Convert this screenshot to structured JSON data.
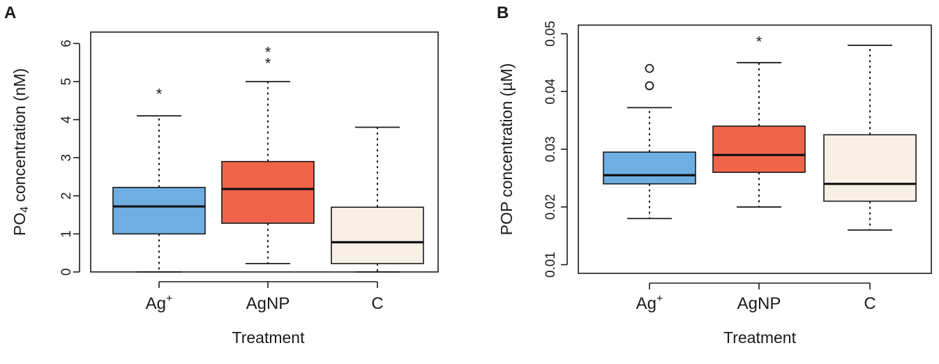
{
  "chart_data": [
    {
      "type": "boxplot",
      "panel_label": "A",
      "xlabel": "Treatment",
      "ylabel": {
        "pre": "PO",
        "sub": "4",
        "post": " concentration (nM)"
      },
      "ylim": [
        0,
        6.3
      ],
      "yticks": [
        "0",
        "1",
        "2",
        "3",
        "4",
        "5",
        "6"
      ],
      "ytick_values": [
        0,
        1,
        2,
        3,
        4,
        5,
        6
      ],
      "categories": [
        {
          "base": "Ag",
          "sup": "+"
        },
        {
          "base": "AgNP",
          "sup": ""
        },
        {
          "base": "C",
          "sup": ""
        }
      ],
      "boxes": [
        {
          "min": 0.0,
          "q1": 1.0,
          "median": 1.72,
          "q3": 2.22,
          "max": 4.1,
          "outliers": [],
          "extremes": [
            4.7
          ],
          "color": "#6eaee3"
        },
        {
          "min": 0.22,
          "q1": 1.28,
          "median": 2.18,
          "q3": 2.9,
          "max": 5.0,
          "outliers": [],
          "extremes": [
            5.5,
            5.8
          ],
          "color": "#f0654a"
        },
        {
          "min": 0.0,
          "q1": 0.22,
          "median": 0.78,
          "q3": 1.7,
          "max": 3.8,
          "outliers": [],
          "extremes": [],
          "color": "#f8f0e6"
        }
      ]
    },
    {
      "type": "boxplot",
      "panel_label": "B",
      "xlabel": "Treatment",
      "ylabel": {
        "pre": "POP concentration (µM)",
        "sub": "",
        "post": ""
      },
      "ylim": [
        0.0085,
        0.0515
      ],
      "yticks": [
        "0.01",
        "0.02",
        "0.03",
        "0.04",
        "0.05"
      ],
      "ytick_values": [
        0.01,
        0.02,
        0.03,
        0.04,
        0.05
      ],
      "categories": [
        {
          "base": "Ag",
          "sup": "+"
        },
        {
          "base": "AgNP",
          "sup": ""
        },
        {
          "base": "C",
          "sup": ""
        }
      ],
      "boxes": [
        {
          "min": 0.018,
          "q1": 0.024,
          "median": 0.0255,
          "q3": 0.0295,
          "max": 0.0372,
          "outliers": [
            0.041,
            0.044
          ],
          "extremes": [],
          "color": "#6eaee3"
        },
        {
          "min": 0.02,
          "q1": 0.026,
          "median": 0.029,
          "q3": 0.034,
          "max": 0.045,
          "outliers": [],
          "extremes": [
            0.0488
          ],
          "color": "#f0654a"
        },
        {
          "min": 0.016,
          "q1": 0.021,
          "median": 0.024,
          "q3": 0.0325,
          "max": 0.048,
          "outliers": [],
          "extremes": [],
          "color": "#f8f0e6"
        }
      ]
    }
  ]
}
